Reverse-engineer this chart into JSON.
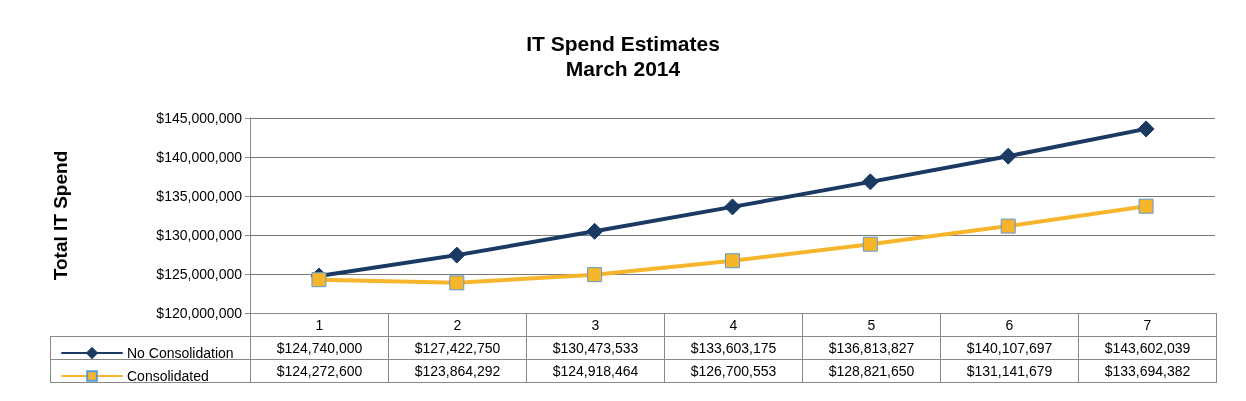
{
  "chart_data": {
    "type": "line",
    "title": "IT Spend Estimates",
    "subtitle": "March 2014",
    "ylabel": "Total IT Spend",
    "categories": [
      "1",
      "2",
      "3",
      "4",
      "5",
      "6",
      "7"
    ],
    "series": [
      {
        "name": "No Consolidation",
        "color": "#1b3a63",
        "marker": "diamond",
        "values": [
          124740000,
          127422750,
          130473533,
          133603175,
          136813827,
          140107697,
          143602039
        ],
        "value_labels": [
          "$124,740,000",
          "$127,422,750",
          "$130,473,533",
          "$133,603,175",
          "$136,813,827",
          "$140,107,697",
          "$143,602,039"
        ]
      },
      {
        "name": "Consolidated",
        "color": "#f7b52c",
        "marker": "square",
        "values": [
          124272600,
          123864292,
          124918464,
          126700553,
          128821650,
          131141679,
          133694382
        ],
        "value_labels": [
          "$124,272,600",
          "$123,864,292",
          "$124,918,464",
          "$126,700,553",
          "$128,821,650",
          "$131,141,679",
          "$133,694,382"
        ]
      }
    ],
    "ylim": [
      120000000,
      145000000
    ],
    "yticks": [
      {
        "value": 120000000,
        "label": "$120,000,000"
      },
      {
        "value": 125000000,
        "label": "$125,000,000"
      },
      {
        "value": 130000000,
        "label": "$130,000,000"
      },
      {
        "value": 135000000,
        "label": "$135,000,000"
      },
      {
        "value": 140000000,
        "label": "$140,000,000"
      },
      {
        "value": 145000000,
        "label": "$145,000,000"
      }
    ],
    "grid": "y",
    "legend": "bottom left",
    "line_style": "solid"
  }
}
